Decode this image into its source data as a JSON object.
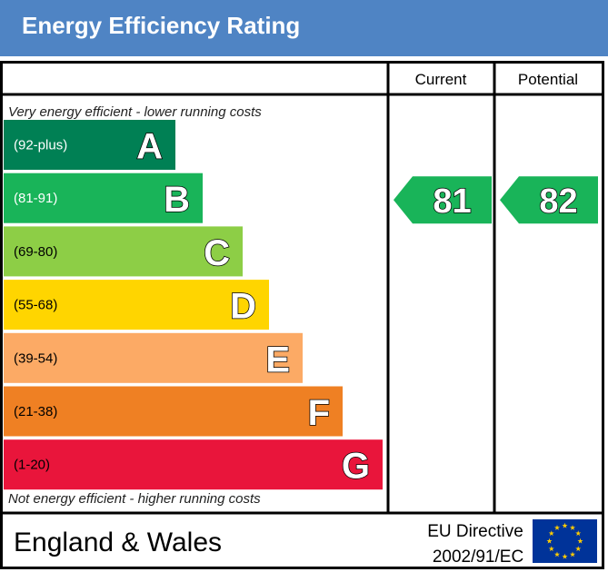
{
  "header": {
    "title": "Energy Efficiency Rating"
  },
  "columns": {
    "current": "Current",
    "potential": "Potential"
  },
  "notes": {
    "top": "Very energy efficient - lower running costs",
    "bottom": "Not energy efficient - higher running costs"
  },
  "footer": {
    "region": "England & Wales",
    "directive_line1": "EU Directive",
    "directive_line2": "2002/91/EC"
  },
  "chart_data": {
    "type": "bar",
    "categories": [
      "A",
      "B",
      "C",
      "D",
      "E",
      "F",
      "G"
    ],
    "ranges": [
      "(92-plus)",
      "(81-91)",
      "(69-80)",
      "(55-68)",
      "(39-54)",
      "(21-38)",
      "(1-20)"
    ],
    "colors": [
      "#008054",
      "#19b459",
      "#8dce46",
      "#ffd500",
      "#fcaa65",
      "#ef8023",
      "#e9153b"
    ],
    "current": {
      "value": 81,
      "band": "B",
      "color": "#19b459"
    },
    "potential": {
      "value": 82,
      "band": "B",
      "color": "#19b459"
    }
  }
}
